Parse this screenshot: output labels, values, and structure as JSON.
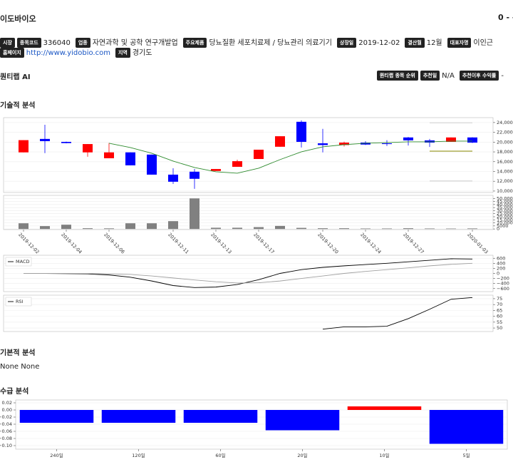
{
  "header": {
    "title": "이도바이오",
    "price": "0 - -"
  },
  "info": {
    "rows": [
      [
        {
          "label": "시장"
        },
        {
          "label": "종목코드",
          "value": "336040"
        },
        {
          "label": "업종",
          "value": "자연과학 및 공학 연구개발업"
        },
        {
          "label": "주요제품",
          "value": "당뇨질환 세포치료제 / 당뇨관리 의료기기"
        },
        {
          "label": "상장일",
          "value": "2019-12-02"
        },
        {
          "label": "결산월",
          "value": "12월"
        },
        {
          "label": "대표자명",
          "value": "이인근"
        }
      ],
      [
        {
          "label": "홈페이지",
          "value": "http://www.yidobio.com"
        },
        {
          "label": "지역",
          "value": "경기도"
        }
      ]
    ]
  },
  "quant": {
    "title": "퀀티랩 AI",
    "items": [
      {
        "label": "퀀티랩 종목 순위"
      },
      {
        "label": "추천일",
        "value": "N/A"
      },
      {
        "label": "추천이후 수익률",
        "value": "-"
      }
    ]
  },
  "sections": {
    "technical": "기술적 분석",
    "fundamental": "기본적 분석",
    "fundamental_text": "None None",
    "supply": "수급 분석"
  },
  "chart_data": [
    {
      "type": "candlestick",
      "x": [
        "2019-12-02",
        null,
        "2019-12-04",
        null,
        "2019-12-06",
        null,
        null,
        "2019-12-11",
        null,
        "2019-12-13",
        null,
        "2019-12-17",
        null,
        null,
        "2019-12-20",
        null,
        "2019-12-24",
        null,
        "2019-12-27",
        null,
        null,
        "2020-01-03"
      ],
      "open": [
        17900,
        20650,
        20050,
        17900,
        16700,
        17900,
        17450,
        13350,
        13950,
        14100,
        14950,
        16550,
        19050,
        24150,
        19750,
        19400,
        19900,
        19750,
        20950,
        20350,
        20050,
        20950
      ],
      "high": [
        20400,
        23550,
        20100,
        19600,
        19800,
        17900,
        17450,
        14650,
        14500,
        14500,
        16400,
        18450,
        21200,
        24450,
        22700,
        20100,
        20200,
        20400,
        21050,
        20650,
        20950,
        21000
      ],
      "low": [
        17900,
        17750,
        19750,
        17000,
        16700,
        15250,
        13350,
        11450,
        10450,
        14100,
        14950,
        16550,
        19050,
        18900,
        17900,
        19100,
        19400,
        19200,
        19300,
        19000,
        20050,
        19800
      ],
      "close": [
        20400,
        20200,
        19800,
        19600,
        17900,
        15250,
        13350,
        11900,
        12500,
        14500,
        16100,
        18450,
        21200,
        20050,
        19400,
        19900,
        19500,
        19600,
        20350,
        19900,
        20950,
        19900
      ],
      "up_color": "#ff0000",
      "down_color": "#0000ff",
      "series": [
        {
          "color": "#2e8b2e",
          "values": [
            null,
            null,
            null,
            null,
            19770,
            18890,
            17730,
            16120,
            14810,
            13940,
            13650,
            14670,
            16420,
            18020,
            19040,
            19480,
            19770,
            19910,
            20060,
            20060,
            20200,
            20200
          ]
        },
        {
          "color": "#c8c8c8",
          "values": [
            null,
            null,
            null,
            null,
            null,
            null,
            null,
            null,
            null,
            null,
            null,
            null,
            null,
            null,
            null,
            null,
            null,
            null,
            null,
            23950,
            23950,
            23950
          ]
        },
        {
          "color": "#8b8b00",
          "values": [
            null,
            null,
            null,
            null,
            null,
            null,
            null,
            null,
            null,
            null,
            null,
            null,
            null,
            null,
            null,
            null,
            null,
            null,
            null,
            18150,
            18150,
            18150
          ]
        },
        {
          "color": "#c8c8c8",
          "values": [
            null,
            null,
            null,
            null,
            null,
            null,
            null,
            null,
            null,
            null,
            null,
            null,
            null,
            null,
            null,
            null,
            null,
            null,
            null,
            12050,
            12050,
            12050
          ]
        }
      ],
      "ylim": [
        9700,
        25000
      ],
      "yticks": [
        {
          "value": 10000,
          "label": "10,000"
        },
        {
          "value": 12000,
          "label": "12,000"
        },
        {
          "value": 14000,
          "label": "14,000"
        },
        {
          "value": 16000,
          "label": "16,000"
        },
        {
          "value": 18000,
          "label": "18,000"
        },
        {
          "value": 20000,
          "label": "20,000"
        },
        {
          "value": 22000,
          "label": "22,000"
        },
        {
          "value": 24000,
          "label": "24,000"
        }
      ],
      "grid": true,
      "volume": {
        "color": "#808080",
        "values": [
          9300,
          4700,
          7000,
          1200,
          1000,
          9300,
          9300,
          12800,
          50000,
          2000,
          2000,
          3000,
          5000,
          1800,
          1200,
          1200,
          800,
          800,
          1200,
          800,
          700,
          900
        ],
        "ylim": [
          -1000,
          55000
        ],
        "yticks": [
          0,
          5000,
          {
            "value": 10000,
            "label": "10,000"
          },
          {
            "value": 15000,
            "label": "15,000"
          },
          {
            "value": 20000,
            "label": "20,000"
          },
          {
            "value": 25000,
            "label": "25,000"
          },
          {
            "value": 30000,
            "label": "30,000"
          },
          {
            "value": 35000,
            "label": "35,000"
          },
          {
            "value": 40000,
            "label": "40,000"
          },
          {
            "value": 45000,
            "label": "45,000"
          },
          {
            "value": 50000,
            "label": "50,000"
          }
        ]
      }
    },
    {
      "type": "line",
      "series": [
        {
          "name": "MACD",
          "color": "#000000",
          "values": [
            0,
            0,
            -10,
            -20,
            -60,
            -150,
            -300,
            -480,
            -560,
            -540,
            -440,
            -250,
            0,
            150,
            240,
            300,
            350,
            400,
            460,
            520,
            580,
            570
          ]
        },
        {
          "color": "#a0a0a0",
          "values": [
            0,
            0,
            0,
            -5,
            -15,
            -40,
            -100,
            -180,
            -260,
            -330,
            -380,
            -370,
            -300,
            -200,
            -100,
            0,
            80,
            150,
            220,
            300,
            360,
            400
          ]
        }
      ],
      "ylim": [
        -720,
        720
      ],
      "yticks": [
        {
          "value": -600,
          "label": "−600"
        },
        {
          "value": -400,
          "label": "−400"
        },
        {
          "value": -200,
          "label": "−200"
        },
        0,
        200,
        400,
        600
      ],
      "grid": true,
      "legend": "upper-left"
    },
    {
      "type": "line",
      "series": [
        {
          "name": "RSI",
          "color": "#000000",
          "values": [
            null,
            null,
            null,
            null,
            null,
            null,
            null,
            null,
            null,
            null,
            null,
            null,
            null,
            null,
            49,
            51,
            51,
            51.5,
            58,
            66,
            74.5,
            76
          ]
        }
      ],
      "ylim": [
        47,
        78
      ],
      "yticks": [
        50,
        55,
        60,
        65,
        70,
        75
      ],
      "grid": true,
      "legend": "upper-left"
    },
    {
      "type": "bar",
      "categories": [
        "240일",
        "120일",
        "60일",
        "20일",
        "10일",
        "5일"
      ],
      "values": [
        -0.036,
        -0.036,
        -0.036,
        -0.057,
        0.01,
        -0.095
      ],
      "colors": [
        "#0000ff",
        "#0000ff",
        "#0000ff",
        "#0000ff",
        "#ff0000",
        "#0000ff"
      ],
      "ylim": [
        -0.11,
        0.028
      ],
      "yticks": [
        0.02,
        {
          "value": 0,
          "label": "0.00"
        },
        {
          "value": -0.02,
          "label": "−0.02"
        },
        {
          "value": -0.04,
          "label": "−0.04"
        },
        {
          "value": -0.06,
          "label": "−0.06"
        },
        {
          "value": -0.08,
          "label": "−0.08"
        },
        {
          "value": -0.1,
          "label": "−0.10"
        }
      ],
      "grid": true
    }
  ]
}
